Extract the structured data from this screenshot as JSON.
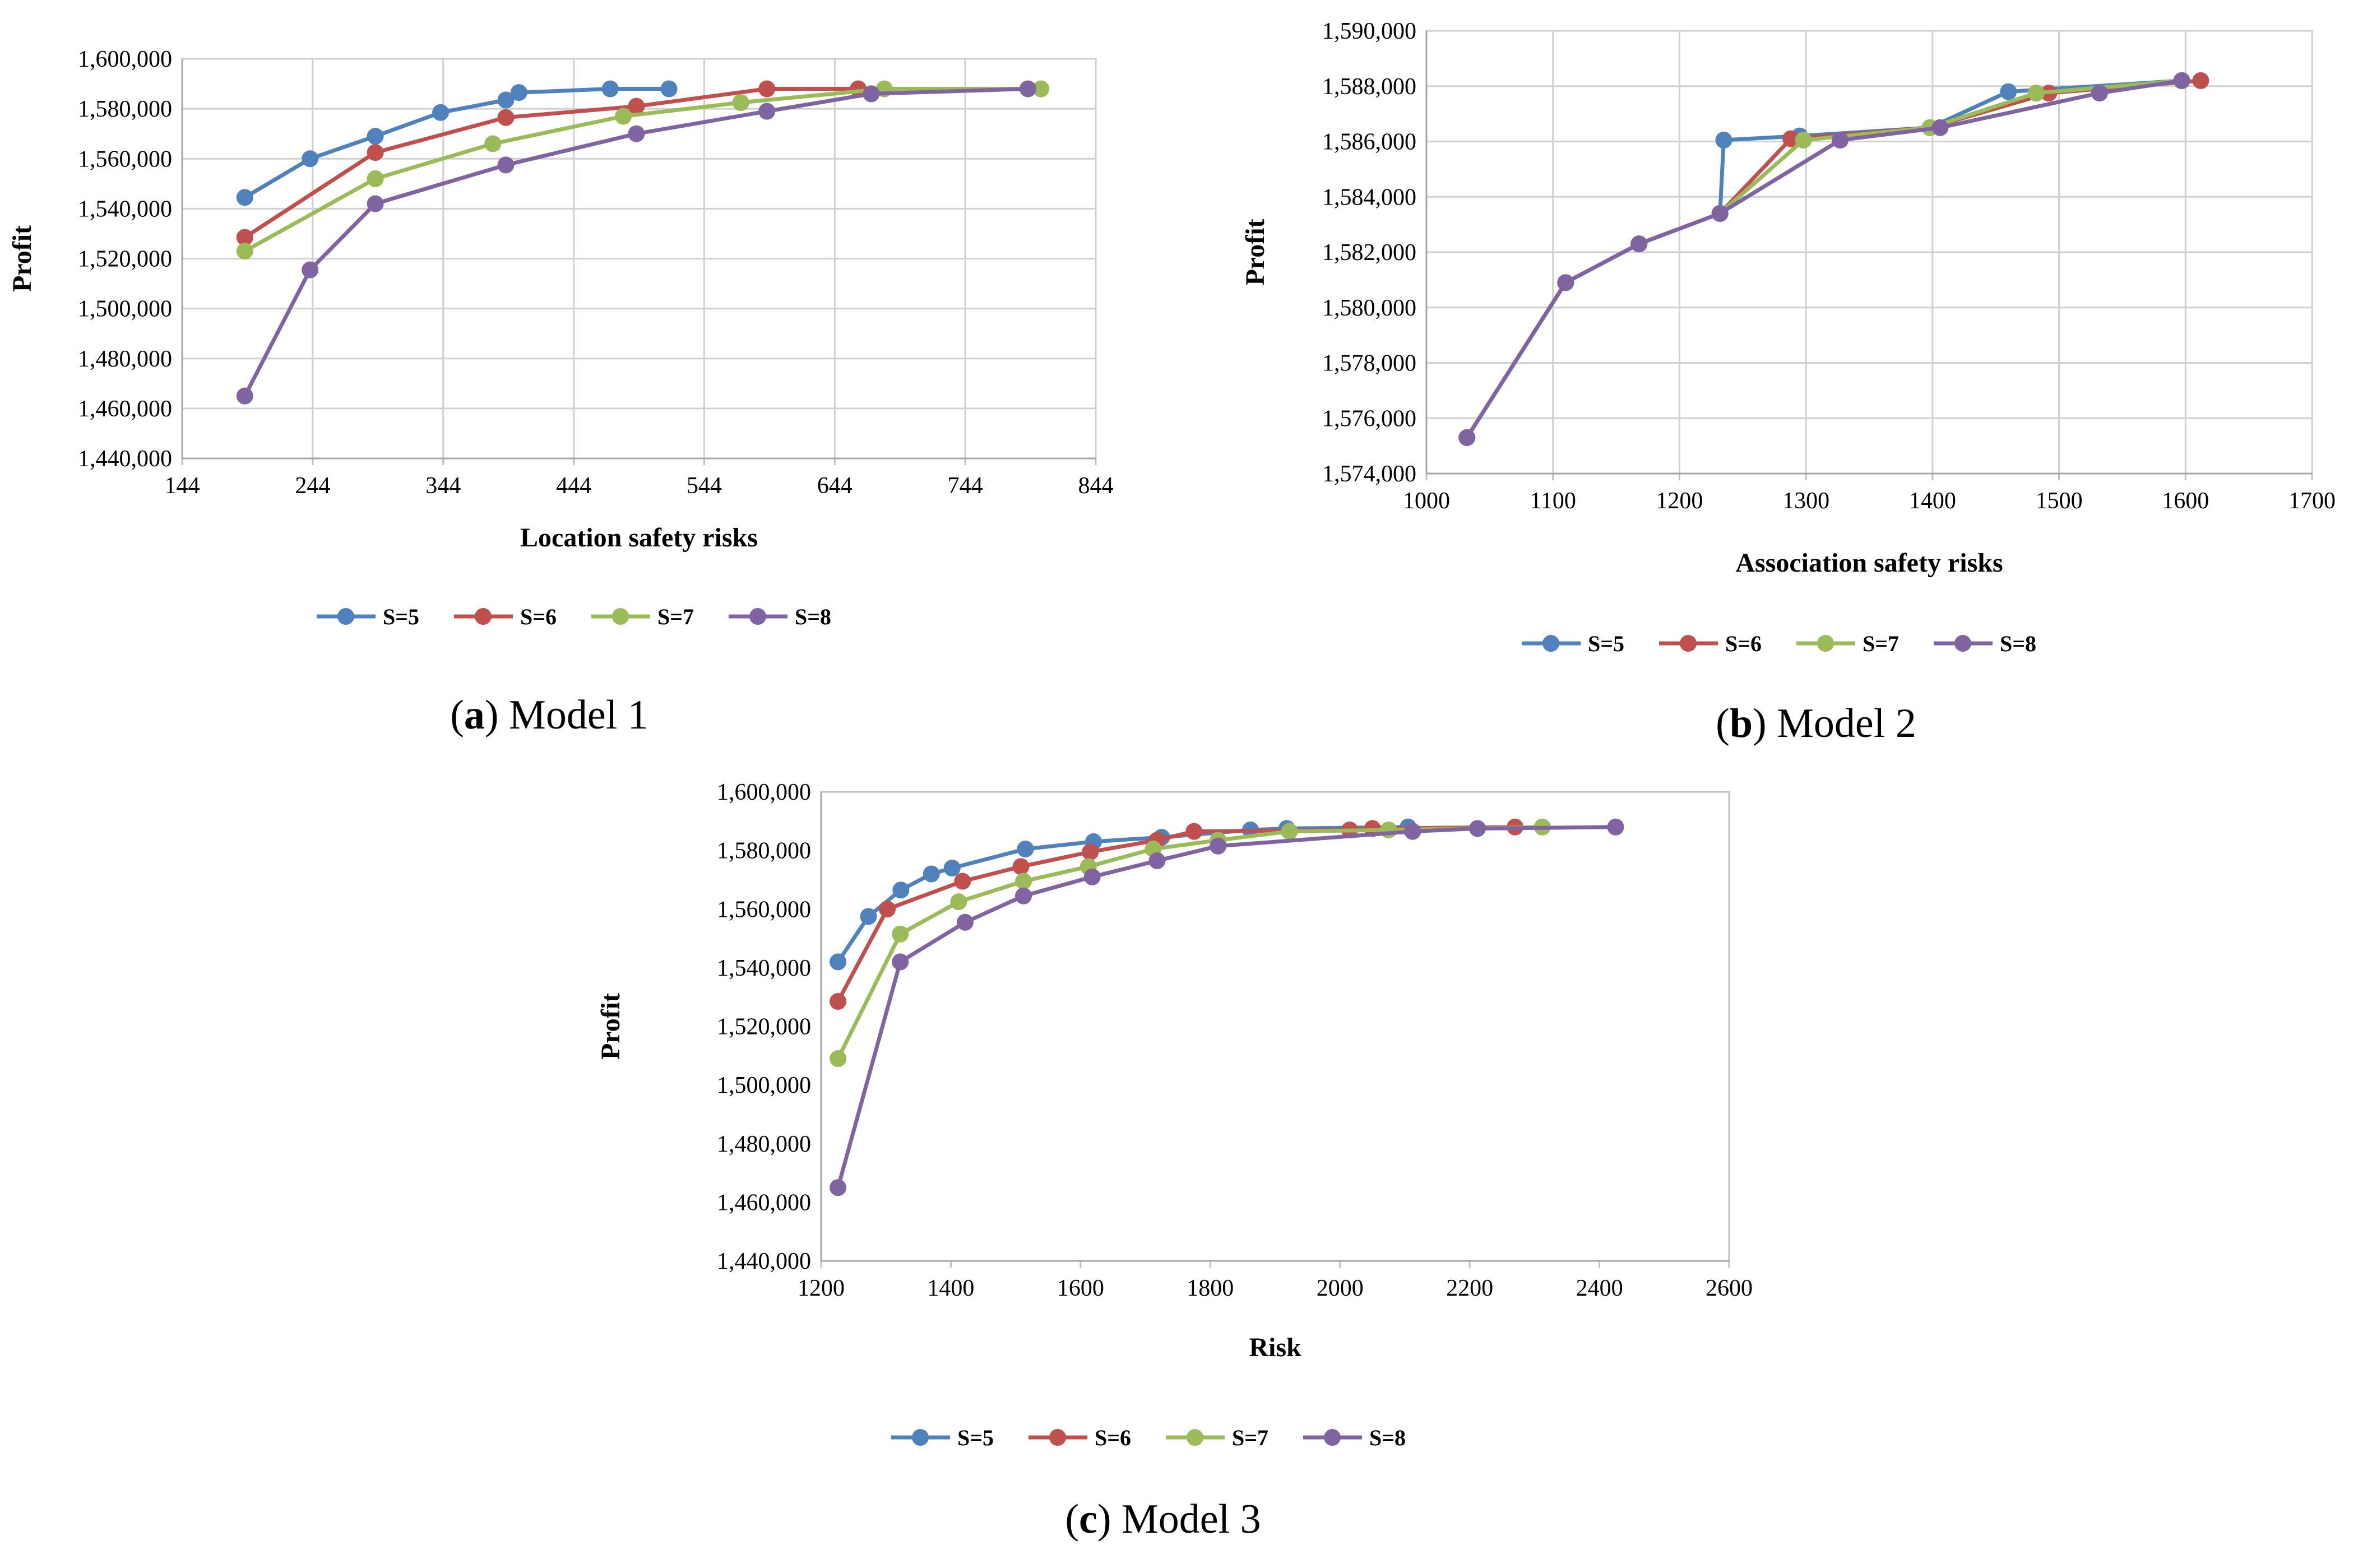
{
  "chart_data": [
    {
      "type": "line",
      "id": "a",
      "caption": {
        "letter": "a",
        "text": "Model 1"
      },
      "xlabel": "Location safety risks",
      "ylabel": "Profit",
      "xlim": [
        144,
        844
      ],
      "ylim": [
        1440000,
        1600000
      ],
      "xticks": [
        "144",
        "244",
        "344",
        "444",
        "544",
        "644",
        "744",
        "844"
      ],
      "yticks": [
        "1,440,000",
        "1,460,000",
        "1,480,000",
        "1,500,000",
        "1,520,000",
        "1,540,000",
        "1,560,000",
        "1,580,000",
        "1,600,000"
      ],
      "grid": true,
      "legend_position": "bottom",
      "series": [
        {
          "name": "S=5",
          "color": "#4F81BD",
          "points": [
            [
              192,
              1544500
            ],
            [
              242,
              1560000
            ],
            [
              292,
              1569000
            ],
            [
              342,
              1578500
            ],
            [
              392,
              1583500
            ],
            [
              402,
              1586500
            ],
            [
              472,
              1588000
            ],
            [
              517,
              1588000
            ]
          ]
        },
        {
          "name": "S=6",
          "color": "#C0504D",
          "points": [
            [
              192,
              1528500
            ],
            [
              292,
              1562500
            ],
            [
              392,
              1576500
            ],
            [
              492,
              1581000
            ],
            [
              592,
              1588000
            ],
            [
              662,
              1588000
            ]
          ]
        },
        {
          "name": "S=7",
          "color": "#9BBB59",
          "points": [
            [
              192,
              1523000
            ],
            [
              292,
              1552000
            ],
            [
              382,
              1566000
            ],
            [
              482,
              1577000
            ],
            [
              572,
              1582500
            ],
            [
              682,
              1588000
            ],
            [
              802,
              1588000
            ]
          ]
        },
        {
          "name": "S=8",
          "color": "#8064A2",
          "points": [
            [
              192,
              1465000
            ],
            [
              242,
              1515500
            ],
            [
              292,
              1542000
            ],
            [
              392,
              1557500
            ],
            [
              492,
              1570000
            ],
            [
              592,
              1579000
            ],
            [
              672,
              1586000
            ],
            [
              792,
              1588000
            ]
          ]
        }
      ]
    },
    {
      "type": "line",
      "id": "b",
      "caption": {
        "letter": "b",
        "text": "Model 2"
      },
      "xlabel": "Association safety risks",
      "ylabel": "Profit",
      "xlim": [
        1000,
        1700
      ],
      "ylim": [
        1574000,
        1590000
      ],
      "xticks": [
        "1000",
        "1100",
        "1200",
        "1300",
        "1400",
        "1500",
        "1600",
        "1700"
      ],
      "yticks": [
        "1,574,000",
        "1,576,000",
        "1,578,000",
        "1,580,000",
        "1,582,000",
        "1,584,000",
        "1,586,000",
        "1,588,000",
        "1,590,000"
      ],
      "grid": true,
      "legend_position": "bottom",
      "series": [
        {
          "name": "S=5",
          "color": "#4F81BD",
          "points": [
            [
              1032,
              1575300
            ],
            [
              1110,
              1580900
            ],
            [
              1168,
              1582300
            ],
            [
              1232,
              1583400
            ],
            [
              1235,
              1586050
            ],
            [
              1295,
              1586200
            ],
            [
              1398,
              1586500
            ],
            [
              1460,
              1587800
            ],
            [
              1597,
              1588200
            ]
          ]
        },
        {
          "name": "S=6",
          "color": "#C0504D",
          "points": [
            [
              1032,
              1575300
            ],
            [
              1110,
              1580900
            ],
            [
              1168,
              1582300
            ],
            [
              1232,
              1583400
            ],
            [
              1288,
              1586100
            ],
            [
              1398,
              1586500
            ],
            [
              1492,
              1587750
            ],
            [
              1612,
              1588200
            ]
          ]
        },
        {
          "name": "S=7",
          "color": "#9BBB59",
          "points": [
            [
              1032,
              1575300
            ],
            [
              1110,
              1580900
            ],
            [
              1168,
              1582300
            ],
            [
              1232,
              1583400
            ],
            [
              1298,
              1586050
            ],
            [
              1398,
              1586500
            ],
            [
              1482,
              1587750
            ],
            [
              1597,
              1588200
            ]
          ]
        },
        {
          "name": "S=8",
          "color": "#8064A2",
          "points": [
            [
              1032,
              1575300
            ],
            [
              1110,
              1580900
            ],
            [
              1168,
              1582300
            ],
            [
              1232,
              1583400
            ],
            [
              1327,
              1586050
            ],
            [
              1406,
              1586500
            ],
            [
              1532,
              1587750
            ],
            [
              1597,
              1588200
            ]
          ]
        }
      ]
    },
    {
      "type": "line",
      "id": "c",
      "caption": {
        "letter": "c",
        "text": "Model 3"
      },
      "xlabel": "Risk",
      "ylabel": "Profit",
      "xlim": [
        1200,
        2600
      ],
      "ylim": [
        1440000,
        1600000
      ],
      "xticks": [
        "1200",
        "1400",
        "1600",
        "1800",
        "2000",
        "2200",
        "2400",
        "2600"
      ],
      "yticks": [
        "1,440,000",
        "1,460,000",
        "1,480,000",
        "1,500,000",
        "1,520,000",
        "1,540,000",
        "1,560,000",
        "1,580,000",
        "1,600,000"
      ],
      "grid": false,
      "legend_position": "bottom",
      "series": [
        {
          "name": "S=5",
          "color": "#4F81BD",
          "points": [
            [
              1226,
              1542000
            ],
            [
              1273,
              1557500
            ],
            [
              1323,
              1566500
            ],
            [
              1370,
              1572000
            ],
            [
              1402,
              1574000
            ],
            [
              1515,
              1580500
            ],
            [
              1620,
              1583000
            ],
            [
              1725,
              1584500
            ],
            [
              1862,
              1587000
            ],
            [
              1918,
              1587500
            ],
            [
              2105,
              1588000
            ]
          ]
        },
        {
          "name": "S=6",
          "color": "#C0504D",
          "points": [
            [
              1226,
              1528500
            ],
            [
              1302,
              1560000
            ],
            [
              1418,
              1569500
            ],
            [
              1508,
              1574500
            ],
            [
              1615,
              1579500
            ],
            [
              1718,
              1583500
            ],
            [
              1775,
              1586500
            ],
            [
              2015,
              1587000
            ],
            [
              2050,
              1587500
            ],
            [
              2270,
              1588000
            ]
          ]
        },
        {
          "name": "S=7",
          "color": "#9BBB59",
          "points": [
            [
              1226,
              1509000
            ],
            [
              1322,
              1551500
            ],
            [
              1412,
              1562500
            ],
            [
              1512,
              1569500
            ],
            [
              1612,
              1574500
            ],
            [
              1712,
              1580500
            ],
            [
              1812,
              1583500
            ],
            [
              1922,
              1586500
            ],
            [
              2075,
              1587000
            ],
            [
              2312,
              1588000
            ]
          ]
        },
        {
          "name": "S=8",
          "color": "#8064A2",
          "points": [
            [
              1226,
              1465000
            ],
            [
              1322,
              1542000
            ],
            [
              1422,
              1555500
            ],
            [
              1512,
              1564500
            ],
            [
              1618,
              1571000
            ],
            [
              1718,
              1576500
            ],
            [
              1812,
              1581500
            ],
            [
              2112,
              1586500
            ],
            [
              2212,
              1587500
            ],
            [
              2425,
              1588000
            ]
          ]
        }
      ]
    }
  ]
}
